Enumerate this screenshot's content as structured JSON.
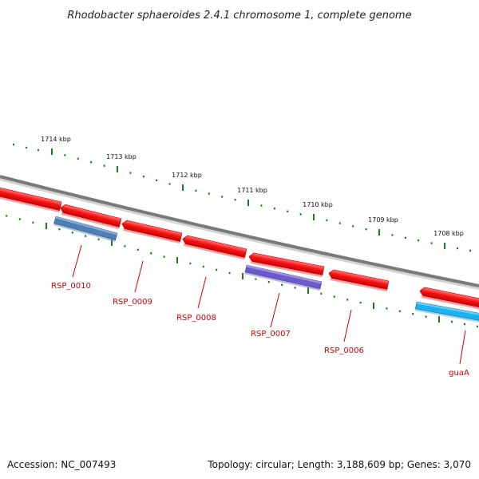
{
  "title": "Rhodobacter sphaeroides 2.4.1 chromosome 1, complete genome",
  "footer": {
    "accession": "Accession: NC_007493",
    "stats": "Topology: circular; Length: 3,188,609 bp; Genes: 3,070"
  },
  "colors": {
    "backbone": "#7a7a7a",
    "cds": "#ee1111",
    "tick": "#1e7b1e",
    "label": "#cc0000",
    "gene_rsp0010": "#4a7fb8",
    "gene_rsp0007": "#6a5acd",
    "gene_guaA": "#18b4ee"
  },
  "ticks": [
    {
      "label": "1714 kbp"
    },
    {
      "label": "1713 kbp"
    },
    {
      "label": "1712 kbp"
    },
    {
      "label": "1711 kbp"
    },
    {
      "label": "1710 kbp"
    },
    {
      "label": "1709 kbp"
    },
    {
      "label": "1708 kbp"
    }
  ],
  "genes": [
    {
      "name": "RSP_0010"
    },
    {
      "name": "RSP_0009"
    },
    {
      "name": "RSP_0008"
    },
    {
      "name": "RSP_0007"
    },
    {
      "name": "RSP_0006"
    },
    {
      "name": "guaA"
    }
  ]
}
